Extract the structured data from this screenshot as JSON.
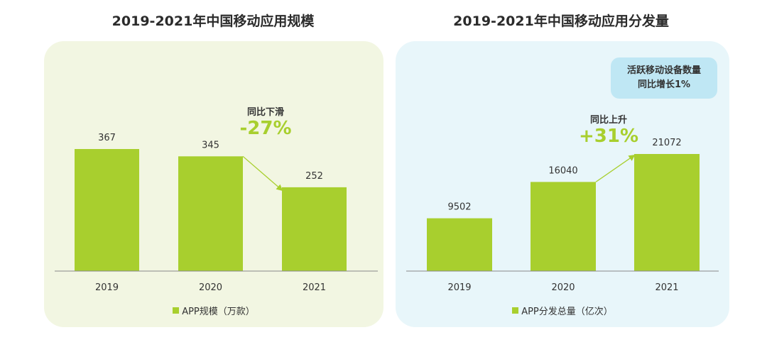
{
  "left": {
    "title": "2019-2021年中国移动应用规模",
    "legend": "APP规模（万款）",
    "callout": {
      "label": "同比下滑",
      "value": "-27%"
    }
  },
  "right": {
    "title": "2019-2021年中国移动应用分发量",
    "legend": "APP分发总量（亿次）",
    "callout": {
      "label": "同比上升",
      "value": "+31%"
    },
    "note": {
      "line1": "活跃移动设备数量",
      "line2": "同比增长1%"
    }
  },
  "colors": {
    "bar": "#a8cf2e",
    "axis": "#888888",
    "arrow": "#a8cf2e"
  },
  "chart_data": [
    {
      "type": "bar",
      "title": "2019-2021年中国移动应用规模",
      "categories": [
        "2019",
        "2020",
        "2021"
      ],
      "series": [
        {
          "name": "APP规模（万款）",
          "values": [
            367,
            345,
            252
          ]
        }
      ],
      "ylim": [
        0,
        367
      ],
      "grid": false,
      "legend": "bottom"
    },
    {
      "type": "bar",
      "title": "2019-2021年中国移动应用分发量",
      "categories": [
        "2019",
        "2020",
        "2021"
      ],
      "series": [
        {
          "name": "APP分发总量（亿次）",
          "values": [
            9502,
            16040,
            21072
          ]
        }
      ],
      "ylim": [
        0,
        21072
      ],
      "grid": false,
      "legend": "bottom"
    }
  ]
}
